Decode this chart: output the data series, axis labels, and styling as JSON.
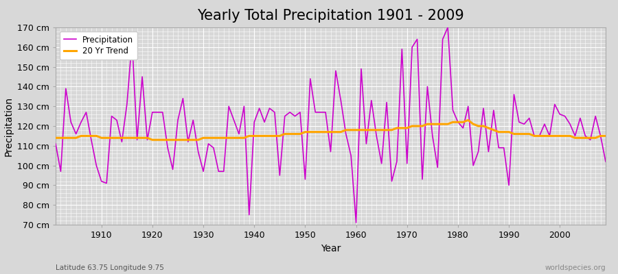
{
  "title": "Yearly Total Precipitation 1901 - 2009",
  "xlabel": "Year",
  "ylabel": "Precipitation",
  "subtitle": "Latitude 63.75 Longitude 9.75",
  "watermark": "worldspecies.org",
  "years": [
    1901,
    1902,
    1903,
    1904,
    1905,
    1906,
    1907,
    1908,
    1909,
    1910,
    1911,
    1912,
    1913,
    1914,
    1915,
    1916,
    1917,
    1918,
    1919,
    1920,
    1921,
    1922,
    1923,
    1924,
    1925,
    1926,
    1927,
    1928,
    1929,
    1930,
    1931,
    1932,
    1933,
    1934,
    1935,
    1936,
    1937,
    1938,
    1939,
    1940,
    1941,
    1942,
    1943,
    1944,
    1945,
    1946,
    1947,
    1948,
    1949,
    1950,
    1951,
    1952,
    1953,
    1954,
    1955,
    1956,
    1957,
    1958,
    1959,
    1960,
    1961,
    1962,
    1963,
    1964,
    1965,
    1966,
    1967,
    1968,
    1969,
    1970,
    1971,
    1972,
    1973,
    1974,
    1975,
    1976,
    1977,
    1978,
    1979,
    1980,
    1981,
    1982,
    1983,
    1984,
    1985,
    1986,
    1987,
    1988,
    1989,
    1990,
    1991,
    1992,
    1993,
    1994,
    1995,
    1996,
    1997,
    1998,
    1999,
    2000,
    2001,
    2002,
    2003,
    2004,
    2005,
    2006,
    2007,
    2008,
    2009
  ],
  "precipitation": [
    111,
    97,
    139,
    122,
    116,
    122,
    127,
    113,
    100,
    92,
    91,
    125,
    123,
    112,
    131,
    163,
    113,
    145,
    113,
    127,
    127,
    127,
    109,
    98,
    123,
    134,
    112,
    123,
    107,
    97,
    111,
    109,
    97,
    97,
    130,
    123,
    116,
    130,
    75,
    122,
    129,
    122,
    129,
    127,
    95,
    125,
    127,
    125,
    127,
    93,
    144,
    127,
    127,
    127,
    107,
    148,
    133,
    116,
    105,
    71,
    149,
    111,
    133,
    115,
    101,
    132,
    92,
    102,
    159,
    101,
    160,
    164,
    93,
    140,
    115,
    99,
    164,
    170,
    128,
    122,
    119,
    130,
    100,
    107,
    129,
    107,
    128,
    109,
    109,
    90,
    136,
    122,
    121,
    124,
    115,
    115,
    121,
    115,
    131,
    126,
    125,
    121,
    115,
    124,
    115,
    113,
    125,
    115,
    102
  ],
  "trend": [
    114,
    114,
    114,
    114,
    114,
    115,
    115,
    115,
    115,
    114,
    114,
    114,
    114,
    114,
    114,
    114,
    114,
    114,
    114,
    113,
    113,
    113,
    113,
    113,
    113,
    113,
    113,
    113,
    113,
    114,
    114,
    114,
    114,
    114,
    114,
    114,
    114,
    114,
    115,
    115,
    115,
    115,
    115,
    115,
    115,
    116,
    116,
    116,
    116,
    117,
    117,
    117,
    117,
    117,
    117,
    117,
    117,
    118,
    118,
    118,
    118,
    118,
    118,
    118,
    118,
    118,
    118,
    119,
    119,
    119,
    120,
    120,
    120,
    121,
    121,
    121,
    121,
    121,
    122,
    122,
    122,
    123,
    121,
    120,
    120,
    119,
    118,
    117,
    117,
    117,
    116,
    116,
    116,
    116,
    115,
    115,
    115,
    115,
    115,
    115,
    115,
    115,
    114,
    114,
    114,
    114,
    114,
    115,
    115
  ],
  "precip_color": "#CC00CC",
  "trend_color": "#FFA500",
  "bg_color": "#D8D8D8",
  "plot_bg_color": "#D8D8D8",
  "ylim": [
    70,
    170
  ],
  "yticks": [
    70,
    80,
    90,
    100,
    110,
    120,
    130,
    140,
    150,
    160,
    170
  ],
  "ytick_labels": [
    "70 cm",
    "80 cm",
    "90 cm",
    "100 cm",
    "110 cm",
    "120 cm",
    "130 cm",
    "140 cm",
    "150 cm",
    "160 cm",
    "170 cm"
  ],
  "xticks": [
    1910,
    1920,
    1930,
    1940,
    1950,
    1960,
    1970,
    1980,
    1990,
    2000
  ],
  "grid_color": "#FFFFFF",
  "title_fontsize": 15,
  "label_fontsize": 10,
  "tick_fontsize": 9,
  "legend_loc": "upper left",
  "xlim": [
    1901,
    2009
  ]
}
